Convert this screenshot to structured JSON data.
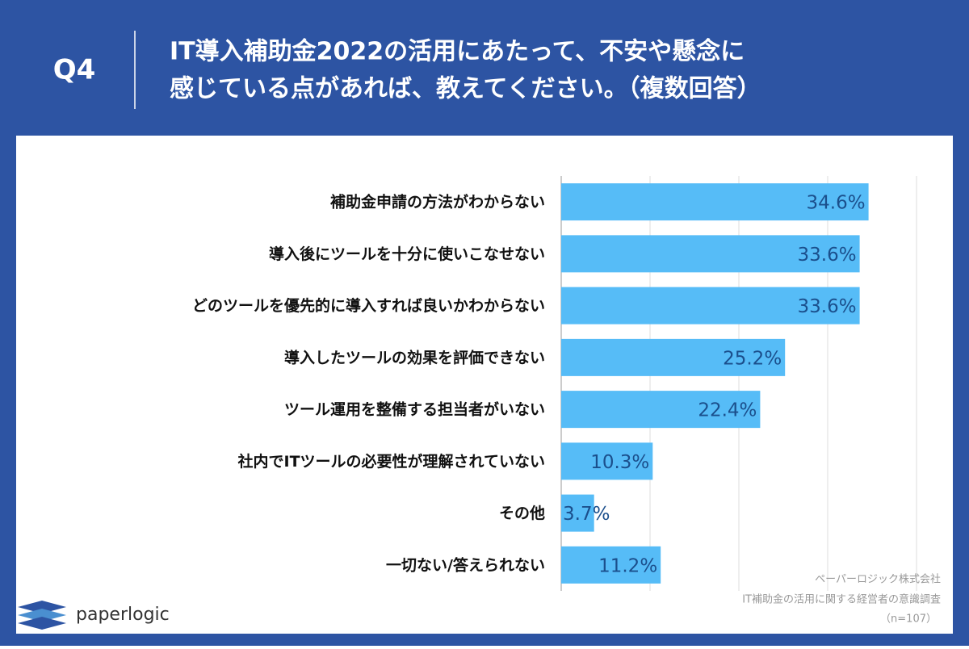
{
  "question_label": "Q4",
  "title": [
    "IT導入補助金2022の活用にあたって、不安や懸念に",
    "感じている点があれば、教えてください。（複数回答）"
  ],
  "logo": "paperlogic",
  "source": [
    "ペーパーロジック株式会社",
    "IT補助金の活用に関する経営者の意識調査",
    "（n=107）"
  ],
  "chart_data": {
    "type": "barh",
    "categories": [
      "補助金申請の方法がわからない",
      "導入後にツールを十分に使いこなせない",
      "どのツールを優先的に導入すれば良いかわからない",
      "導入したツールの効果を評価できない",
      "ツール運用を整備する担当者がいない",
      "社内でITツールの必要性が理解されていない",
      "その他",
      "一切ない/答えられない"
    ],
    "values": [
      34.6,
      33.6,
      33.6,
      25.2,
      22.4,
      10.3,
      3.7,
      11.2
    ],
    "value_labels": [
      "34.6%",
      "33.6%",
      "33.6%",
      "25.2%",
      "22.4%",
      "10.3%",
      "3.7%",
      "11.2%"
    ],
    "color": "#56bcf7",
    "xlim": [
      0,
      40
    ],
    "xticks": [
      0,
      10,
      20,
      30,
      40
    ],
    "grid": true
  }
}
